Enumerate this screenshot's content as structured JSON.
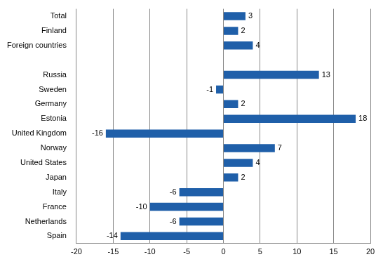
{
  "chart_data": {
    "type": "bar",
    "orientation": "horizontal",
    "categories": [
      "Total",
      "Finland",
      "Foreign countries",
      null,
      "Russia",
      "Sweden",
      "Germany",
      "Estonia",
      "United Kingdom",
      "Norway",
      "United States",
      "Japan",
      "Italy",
      "France",
      "Netherlands",
      "Spain"
    ],
    "values": [
      3,
      2,
      4,
      null,
      13,
      -1,
      2,
      18,
      -16,
      7,
      4,
      2,
      -6,
      -10,
      -6,
      -14
    ],
    "color": "#1f5fa9",
    "xlim": [
      -20,
      20
    ],
    "xticks": [
      -20,
      -15,
      -10,
      -5,
      0,
      5,
      10,
      15,
      20
    ],
    "grid": true,
    "data_labels": true
  }
}
